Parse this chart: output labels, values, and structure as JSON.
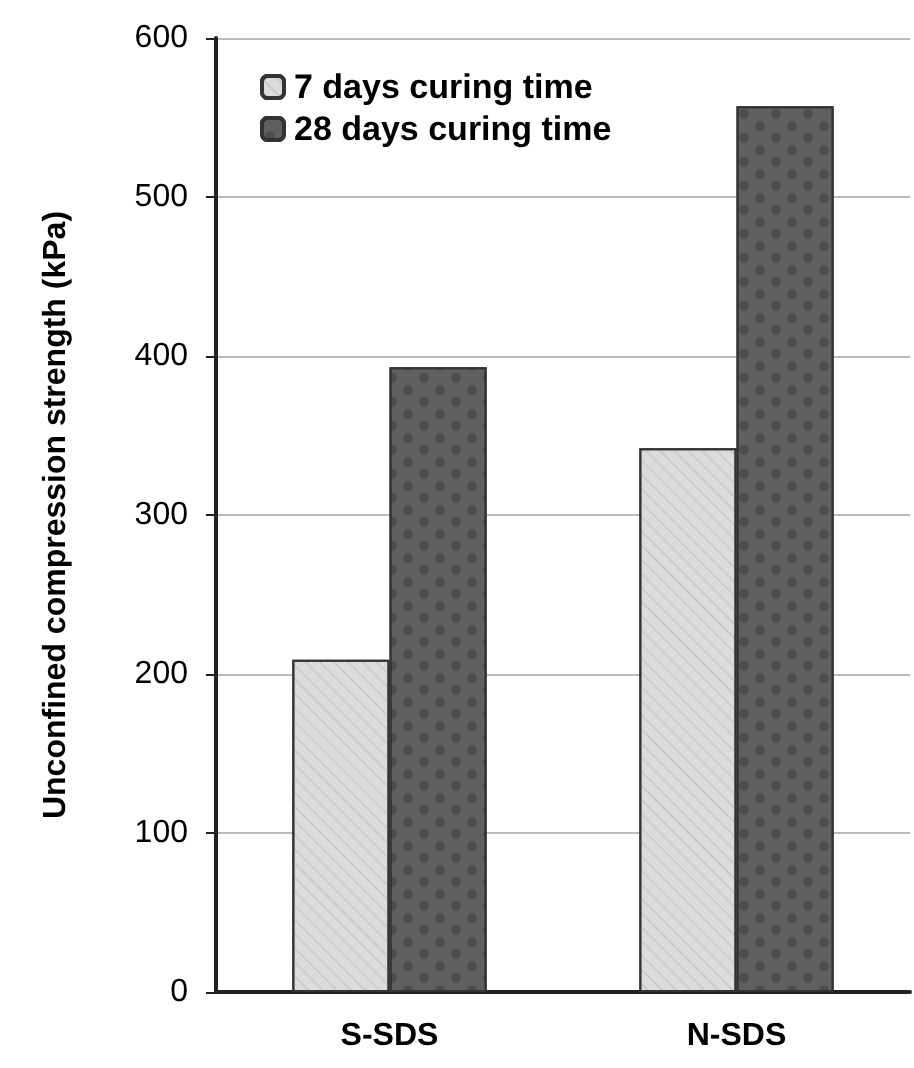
{
  "chart_data": {
    "type": "bar",
    "ylabel": "Unconfined compression strength (kPa)",
    "categories": [
      "S-SDS",
      "N-SDS"
    ],
    "series": [
      {
        "name": "7 days curing time",
        "color": "#dcdcdc",
        "values": [
          209,
          342
        ]
      },
      {
        "name": "28 days curing time",
        "color": "#606060",
        "values": [
          393,
          557
        ]
      }
    ],
    "ylim": [
      0,
      600
    ],
    "yticks": [
      0,
      100,
      200,
      300,
      400,
      500,
      600
    ],
    "grid": "y",
    "legend": "top left"
  }
}
